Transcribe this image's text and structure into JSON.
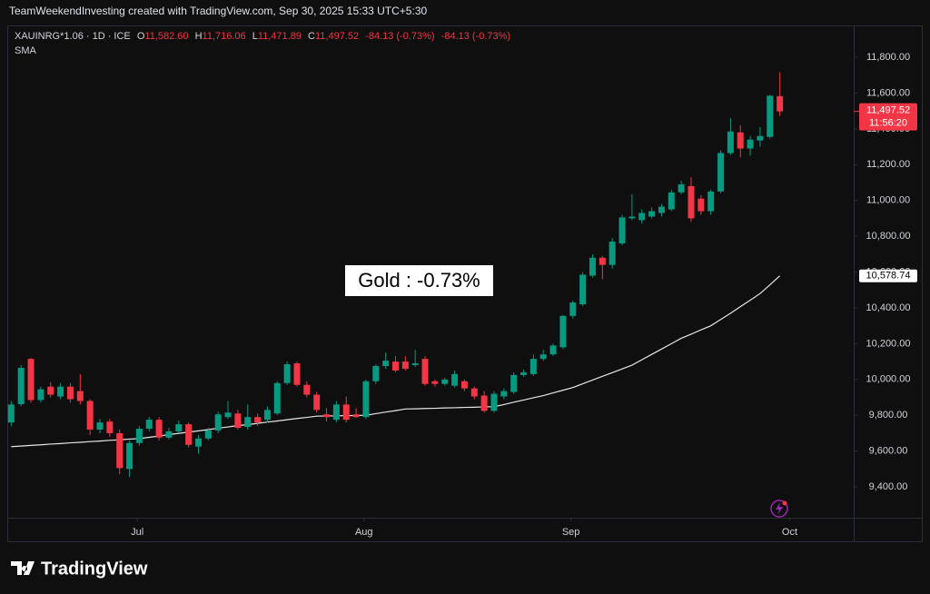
{
  "chart_data": {
    "type": "candlestick",
    "header": "TeamWeekendInvesting created with TradingView.com, Sep 30, 2025 15:33 UTC+5:30",
    "legend": {
      "symbol": "XAUINRG*1.06 · 1D · ICE",
      "fields": [
        {
          "key": "O",
          "value": "11,582.60"
        },
        {
          "key": "H",
          "value": "11,716.06"
        },
        {
          "key": "L",
          "value": "11,471.89"
        },
        {
          "key": "C",
          "value": "11,497.52"
        }
      ],
      "change": "-84.13 (-0.73%)",
      "change2": "-84.13 (-0.73%)"
    },
    "annotation": "Gold : -0.73%",
    "last_price_label": "11,497.52",
    "countdown": "11:56:20",
    "sma_label": "10,578.74",
    "brand": "TradingView",
    "up_color": "#089981",
    "down_color": "#f23645",
    "xlim": [
      -0.4,
      85.5
    ],
    "ylim": [
      9238,
      11866
    ],
    "xticks": [
      {
        "value": 12.8,
        "label": "Jul"
      },
      {
        "value": 35.8,
        "label": "Aug"
      },
      {
        "value": 56.8,
        "label": "Sep"
      },
      {
        "value": 79,
        "label": "Oct"
      }
    ],
    "yticks": [
      {
        "value": 9400,
        "label": "9,400.00"
      },
      {
        "value": 9600,
        "label": "9,600.00"
      },
      {
        "value": 9800,
        "label": "9,800.00"
      },
      {
        "value": 10000,
        "label": "10,000.00"
      },
      {
        "value": 10200,
        "label": "10,200.00"
      },
      {
        "value": 10400,
        "label": "10,400.00"
      },
      {
        "value": 10600,
        "label": "10,600.00"
      },
      {
        "value": 10800,
        "label": "10,800.00"
      },
      {
        "value": 11000,
        "label": "11,000.00"
      },
      {
        "value": 11200,
        "label": "11,200.00"
      },
      {
        "value": 11400,
        "label": "11,400.00"
      },
      {
        "value": 11600,
        "label": "11,600.00"
      },
      {
        "value": 11800,
        "label": "11,800.00"
      }
    ],
    "grid": false,
    "open": [
      9760,
      9862,
      10115,
      9885,
      9960,
      9905,
      9960,
      9935,
      9880,
      9720,
      9765,
      9700,
      9500,
      9645,
      9725,
      9775,
      9675,
      9710,
      9750,
      9625,
      9670,
      9715,
      9790,
      9810,
      9735,
      9790,
      9775,
      9810,
      9980,
      10090,
      9970,
      9915,
      9805,
      9775,
      9860,
      9805,
      9790,
      9990,
      10075,
      10100,
      10100,
      10080,
      10115,
      9990,
      9975,
      9965,
      9990,
      9950,
      9910,
      9825,
      9905,
      9930,
      10025,
      10030,
      10115,
      10140,
      10180,
      10355,
      10420,
      10580,
      10680,
      10640,
      10760,
      10900,
      10890,
      10910,
      10930,
      10950,
      11045,
      11080,
      11010,
      10940,
      11050,
      11265,
      11380,
      11290,
      11335,
      11355,
      11582.6
    ],
    "high": [
      9880,
      10080,
      10120,
      9960,
      9985,
      9980,
      9980,
      10030,
      9890,
      9780,
      9780,
      9720,
      9660,
      9740,
      9790,
      9790,
      9730,
      9770,
      9760,
      9690,
      9730,
      9820,
      9880,
      9830,
      9860,
      9810,
      9850,
      9990,
      10100,
      10100,
      9990,
      9930,
      9840,
      9880,
      9905,
      9840,
      10000,
      10085,
      10150,
      10130,
      10130,
      10165,
      10130,
      10000,
      10010,
      10050,
      10000,
      9960,
      9935,
      9935,
      9950,
      10040,
      10055,
      10140,
      10165,
      10200,
      10360,
      10440,
      10600,
      10700,
      10690,
      10790,
      10920,
      11035,
      10950,
      10960,
      10980,
      11060,
      11110,
      11130,
      11030,
      11060,
      11280,
      11460,
      11420,
      11360,
      11410,
      11590,
      11716.06
    ],
    "low": [
      9740,
      9850,
      9870,
      9870,
      9900,
      9890,
      9870,
      9860,
      9690,
      9700,
      9680,
      9470,
      9455,
      9630,
      9710,
      9660,
      9665,
      9700,
      9620,
      9585,
      9660,
      9700,
      9780,
      9720,
      9720,
      9740,
      9760,
      9800,
      9970,
      9960,
      9900,
      9815,
      9765,
      9760,
      9760,
      9785,
      9780,
      9975,
      10060,
      10040,
      10050,
      10070,
      9965,
      9960,
      9965,
      9955,
      9935,
      9890,
      9815,
      9815,
      9890,
      9920,
      10015,
      10020,
      10105,
      10130,
      10170,
      10340,
      10410,
      10570,
      10560,
      10620,
      10750,
      10890,
      10870,
      10900,
      10910,
      10940,
      11035,
      10880,
      10920,
      10920,
      11040,
      11255,
      11240,
      11250,
      11300,
      11345,
      11471.89
    ],
    "close": [
      9860,
      10065,
      9885,
      9945,
      9915,
      9960,
      9890,
      9880,
      9720,
      9760,
      9700,
      9505,
      9645,
      9725,
      9775,
      9675,
      9710,
      9750,
      9635,
      9670,
      9715,
      9805,
      9815,
      9730,
      9790,
      9760,
      9830,
      9980,
      10085,
      9970,
      9915,
      9830,
      9790,
      9860,
      9775,
      9790,
      9990,
      10075,
      10105,
      10050,
      10060,
      10090,
      9975,
      9975,
      10000,
      10030,
      9950,
      9905,
      9825,
      9920,
      9935,
      10025,
      10040,
      10115,
      10140,
      10190,
      10355,
      10430,
      10585,
      10680,
      10640,
      10770,
      10905,
      10910,
      10930,
      10940,
      10965,
      11045,
      11090,
      10900,
      10940,
      11050,
      11265,
      11385,
      11290,
      11340,
      11360,
      11585,
      11497.52
    ],
    "sma": {
      "name": "SMA",
      "color": "#e6e6e6",
      "values": [
        9625,
        9628,
        9632,
        9635,
        9639,
        9642,
        9646,
        9649,
        9653,
        9656,
        9660,
        9663,
        9667,
        9670,
        9677,
        9684,
        9692,
        9699,
        9706,
        9713,
        9720,
        9728,
        9735,
        9742,
        9748,
        9755,
        9762,
        9768,
        9775,
        9782,
        9788,
        9795,
        9796,
        9797,
        9798,
        9799,
        9800,
        9809,
        9818,
        9826,
        9835,
        9836,
        9838,
        9839,
        9841,
        9842,
        9844,
        9845,
        9847,
        9848,
        9860,
        9873,
        9885,
        9898,
        9910,
        9925,
        9940,
        9955,
        9976,
        9997,
        10018,
        10038,
        10059,
        10080,
        10110,
        10140,
        10170,
        10200,
        10230,
        10253,
        10277,
        10300,
        10335,
        10370,
        10407,
        10443,
        10480,
        10529,
        10578.74
      ]
    }
  }
}
